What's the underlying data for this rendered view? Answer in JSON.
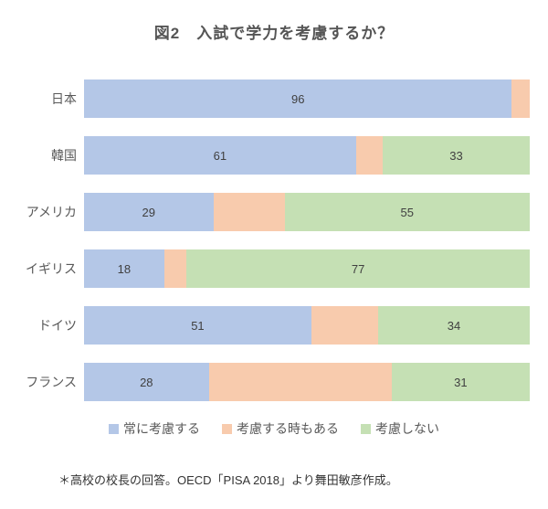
{
  "title": "図2　入試で学力を考慮するか？",
  "footnote": "＊高校の校長の回答。OECD「PISA 2018」より舞田敏彦作成。",
  "colors": {
    "always": "#b4c7e7",
    "sometimes": "#f8cbad",
    "never": "#c5e0b4",
    "label_text": "#595959",
    "value_text": "#404040",
    "title_text": "#555555"
  },
  "legend": {
    "position": "bottom",
    "items": [
      {
        "key": "always",
        "label": "常に考慮する",
        "color": "#b4c7e7"
      },
      {
        "key": "sometimes",
        "label": "考慮する時もある",
        "color": "#f8cbad"
      },
      {
        "key": "never",
        "label": "考慮しない",
        "color": "#c5e0b4"
      }
    ]
  },
  "chart_data": {
    "type": "bar",
    "stacked": true,
    "orientation": "horizontal",
    "title": "図2　入試で学力を考慮するか？",
    "categories": [
      "日本",
      "韓国",
      "アメリカ",
      "イギリス",
      "ドイツ",
      "フランス"
    ],
    "series": [
      {
        "key": "always",
        "name": "常に考慮する",
        "color": "#b4c7e7",
        "values": [
          96,
          61,
          29,
          18,
          51,
          28
        ],
        "show_value_labels": [
          true,
          true,
          true,
          true,
          true,
          true
        ]
      },
      {
        "key": "sometimes",
        "name": "考慮する時もある",
        "color": "#f8cbad",
        "values": [
          4,
          6,
          16,
          5,
          15,
          41
        ],
        "show_value_labels": [
          false,
          false,
          false,
          false,
          false,
          false
        ]
      },
      {
        "key": "never",
        "name": "考慮しない",
        "color": "#c5e0b4",
        "values": [
          0,
          33,
          55,
          77,
          34,
          31
        ],
        "show_value_labels": [
          false,
          true,
          true,
          true,
          true,
          true
        ]
      }
    ],
    "xlim": [
      0,
      100
    ],
    "grid": false,
    "legend_position": "bottom"
  }
}
